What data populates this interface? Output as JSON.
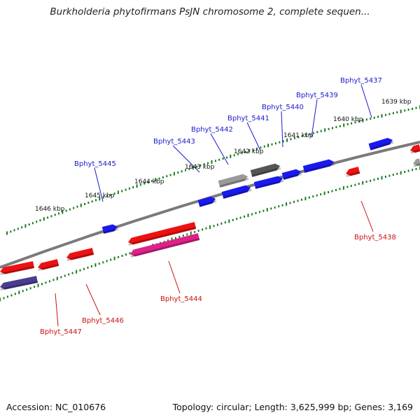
{
  "title": "Burkholderia phytofirmans PsJN chromosome 2, complete sequen...",
  "accession": "Accession: NC_010676",
  "topology": "Topology: circular; Length: 3,625,999 bp; Genes: 3,169",
  "colors": {
    "backbone": "#7a7a7a",
    "scale_dots": "#1d7a1d",
    "forward_gene": "#1a1aee",
    "reverse_gene": "#ee1111",
    "pseudo_gray": "#9a9a9a",
    "pink_gene": "#dd2288",
    "purple_gene": "#4a3d8f",
    "forward_label": "#1a1acc",
    "reverse_label": "#cc1111"
  },
  "scale_labels": [
    "1646 kbp",
    "1645 kbp",
    "1644 kbp",
    "1643 kbp",
    "1642 kbp",
    "1641 kbp",
    "1640 kbp",
    "1639 kbp"
  ],
  "forward_genes": [
    "Bphyt_5445",
    "Bphyt_5443",
    "Bphyt_5442",
    "Bphyt_5441",
    "Bphyt_5440",
    "Bphyt_5439",
    "Bphyt_5437"
  ],
  "reverse_genes": [
    "Bphyt_5447",
    "Bphyt_5446",
    "Bphyt_5444",
    "Bphyt_5438"
  ]
}
